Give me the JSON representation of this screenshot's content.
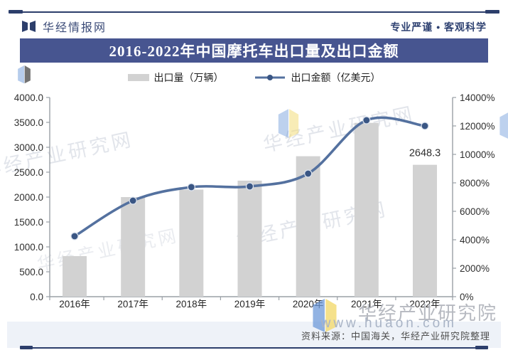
{
  "header": {
    "brand": "华经情报网",
    "tagline": "专业严谨 • 客观科学"
  },
  "title": "2016-2022年中国摩托车出口量及出口金额",
  "legend": [
    {
      "label": "出口量（万辆）",
      "swatch": "gray-bar-swatch"
    },
    {
      "label": "出口金额（亿美元）",
      "swatch": "blue-line-dot-swatch"
    }
  ],
  "chart_data": {
    "type": "bar+line combo",
    "categories": [
      "2016年",
      "2017年",
      "2018年",
      "2019年",
      "2020年",
      "2021年",
      "2022年"
    ],
    "series": [
      {
        "name": "出口量（万辆）",
        "type": "bar",
        "axis": "left",
        "color": "#d2d2d2",
        "values": [
          815,
          2000,
          2150,
          2330,
          2820,
          3490,
          2648.3
        ]
      },
      {
        "name": "出口金额（亿美元）",
        "type": "line",
        "axis": "right",
        "color": "#54719f",
        "marker_color": "#3a5684",
        "values": [
          4250,
          6750,
          7700,
          7750,
          8650,
          12400,
          12000
        ]
      }
    ],
    "annotations": [
      {
        "category": "2022年",
        "series": "出口量（万辆）",
        "text": "2648.3"
      }
    ],
    "y_left": {
      "min": 0,
      "max": 4000,
      "step": 500,
      "ticks": [
        "4000.0",
        "3500.0",
        "3000.0",
        "2500.0",
        "2000.0",
        "1500.0",
        "1000.0",
        "500.0",
        "0.0"
      ]
    },
    "y_right": {
      "min": 0,
      "max": 14000,
      "step": 2000,
      "ticks": [
        "14000%",
        "12000%",
        "10000%",
        "8000%",
        "6000%",
        "4000%",
        "2000%",
        "0%"
      ]
    },
    "grid": false,
    "legend_position": "top-center"
  },
  "watermarks": {
    "diagonal_text": "华经产业研究网",
    "footer_logo_text": "华经产业研究院",
    "footer_url": "www.huaon.com"
  },
  "footer": {
    "source": "资料来源：中国海关，华经产业研究院整理"
  }
}
